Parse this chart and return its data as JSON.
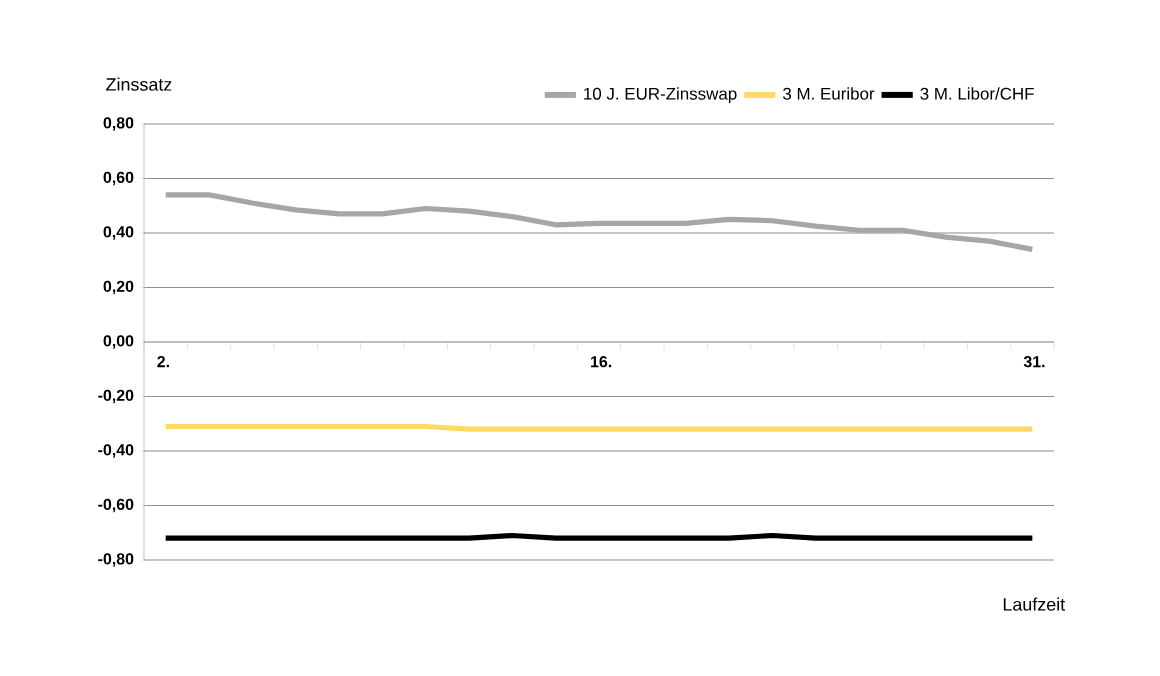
{
  "chart_data": {
    "type": "line",
    "xlabel": "Laufzeit",
    "ylabel": "Zinssatz",
    "categories": [
      "2.",
      null,
      null,
      null,
      null,
      null,
      null,
      null,
      null,
      null,
      "16.",
      null,
      null,
      null,
      null,
      null,
      null,
      null,
      null,
      null,
      "31."
    ],
    "series": [
      {
        "name": "10 J. EUR-Zinsswap",
        "color": "#a6a6a6",
        "values": [
          0.54,
          0.54,
          0.51,
          0.485,
          0.47,
          0.47,
          0.49,
          0.48,
          0.46,
          0.43,
          0.435,
          0.435,
          0.435,
          0.45,
          0.445,
          0.425,
          0.41,
          0.41,
          0.385,
          0.37,
          0.34
        ]
      },
      {
        "name": "3 M. Euribor",
        "color": "#ffd966",
        "values": [
          -0.31,
          -0.31,
          -0.31,
          -0.31,
          -0.31,
          -0.31,
          -0.31,
          -0.32,
          -0.32,
          -0.32,
          -0.32,
          -0.32,
          -0.32,
          -0.32,
          -0.32,
          -0.32,
          -0.32,
          -0.32,
          -0.32,
          -0.32,
          -0.32
        ]
      },
      {
        "name": "3 M. Libor/CHF",
        "color": "#000000",
        "values": [
          -0.72,
          -0.72,
          -0.72,
          -0.72,
          -0.72,
          -0.72,
          -0.72,
          -0.72,
          -0.71,
          -0.72,
          -0.72,
          -0.72,
          -0.72,
          -0.72,
          -0.71,
          -0.72,
          -0.72,
          -0.72,
          -0.72,
          -0.72,
          -0.72
        ]
      }
    ],
    "ylim": [
      -0.8,
      0.8
    ],
    "yticks": [
      {
        "value": -0.8,
        "label": "-0,80"
      },
      {
        "value": -0.6,
        "label": "-0,60"
      },
      {
        "value": -0.4,
        "label": "-0,40"
      },
      {
        "value": -0.2,
        "label": "-0,20"
      },
      {
        "value": 0,
        "label": "0,00"
      },
      {
        "value": 0.2,
        "label": "0,20"
      },
      {
        "value": 0.4,
        "label": "0,40"
      },
      {
        "value": 0.6,
        "label": "0,60"
      },
      {
        "value": 0.8,
        "label": "0,80"
      }
    ],
    "grid": "y",
    "legend": "top",
    "marker": "none",
    "line_style": "solid"
  }
}
